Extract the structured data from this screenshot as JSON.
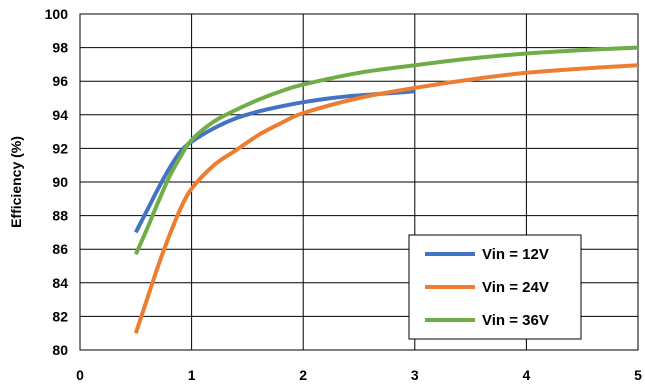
{
  "chart_data": {
    "type": "line",
    "title": "",
    "xlabel": "",
    "ylabel": "Efficiency (%)",
    "xlim": [
      0,
      5
    ],
    "ylim": [
      80,
      100
    ],
    "x_ticks": [
      "0",
      "1",
      "2",
      "3",
      "4",
      "5"
    ],
    "y_ticks": [
      "80",
      "82",
      "84",
      "86",
      "88",
      "90",
      "92",
      "94",
      "96",
      "98",
      "100"
    ],
    "grid": true,
    "legend_position": "bottom-right",
    "series": [
      {
        "name": "Vin = 12V",
        "color": "#4472C4",
        "x": [
          0.5,
          0.6,
          0.7,
          0.8,
          0.9,
          1.0,
          1.2,
          1.4,
          1.6,
          1.8,
          2.0,
          2.2,
          2.4,
          2.6,
          2.8,
          3.0
        ],
        "y": [
          87.0,
          88.3,
          89.6,
          90.8,
          91.8,
          92.4,
          93.2,
          93.8,
          94.2,
          94.5,
          94.75,
          94.95,
          95.1,
          95.2,
          95.3,
          95.4
        ]
      },
      {
        "name": "Vin = 24V",
        "color": "#ED7D31",
        "x": [
          0.5,
          0.6,
          0.7,
          0.8,
          0.9,
          1.0,
          1.2,
          1.4,
          1.6,
          1.8,
          2.0,
          2.5,
          3.0,
          3.5,
          4.0,
          4.5,
          5.0
        ],
        "y": [
          81.0,
          83.0,
          85.0,
          86.8,
          88.4,
          89.6,
          91.0,
          91.9,
          92.8,
          93.5,
          94.1,
          95.0,
          95.6,
          96.1,
          96.5,
          96.75,
          96.95
        ]
      },
      {
        "name": "Vin = 36V",
        "color": "#70AD47",
        "x": [
          0.5,
          0.6,
          0.7,
          0.8,
          0.9,
          1.0,
          1.2,
          1.4,
          1.6,
          1.8,
          2.0,
          2.5,
          3.0,
          3.5,
          4.0,
          4.5,
          5.0
        ],
        "y": [
          85.7,
          87.2,
          88.8,
          90.3,
          91.5,
          92.5,
          93.6,
          94.3,
          94.9,
          95.4,
          95.8,
          96.5,
          96.95,
          97.35,
          97.65,
          97.85,
          98.0
        ]
      }
    ]
  }
}
